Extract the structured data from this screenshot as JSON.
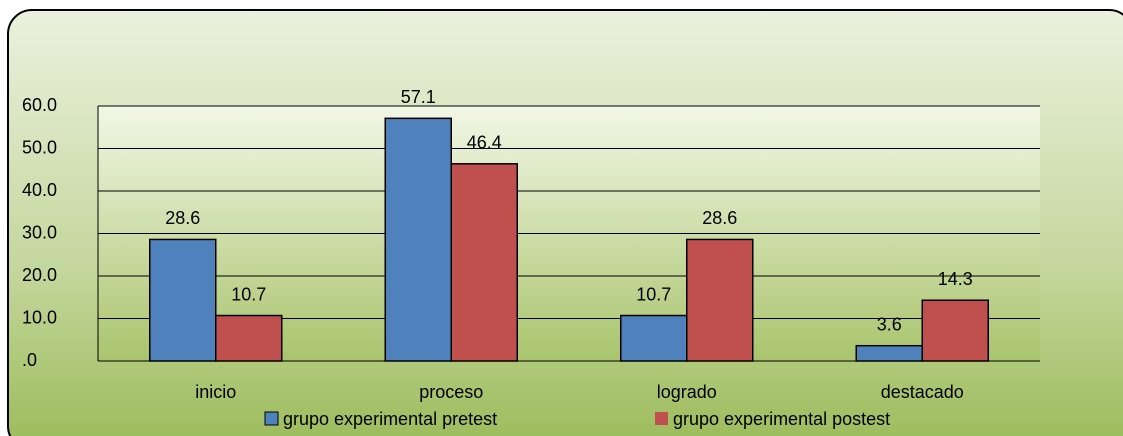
{
  "chart_data": {
    "type": "bar",
    "categories": [
      "inicio",
      "proceso",
      "logrado",
      "destacado"
    ],
    "series": [
      {
        "name": "grupo experimental pretest",
        "color": "#4f81bd",
        "values": [
          28.6,
          57.1,
          10.7,
          3.6
        ]
      },
      {
        "name": "grupo experimental postest",
        "color": "#c0504d",
        "values": [
          10.7,
          46.4,
          28.6,
          14.3
        ]
      }
    ],
    "ylim": [
      0,
      60
    ],
    "yticks": [
      {
        "value": 0,
        "label": ".0"
      },
      {
        "value": 10,
        "label": "10.0"
      },
      {
        "value": 20,
        "label": "20.0"
      },
      {
        "value": 30,
        "label": "30.0"
      },
      {
        "value": 40,
        "label": "40.0"
      },
      {
        "value": 50,
        "label": "50.0"
      },
      {
        "value": 60,
        "label": "60.0"
      }
    ],
    "grid": true,
    "legend": "bottom"
  }
}
